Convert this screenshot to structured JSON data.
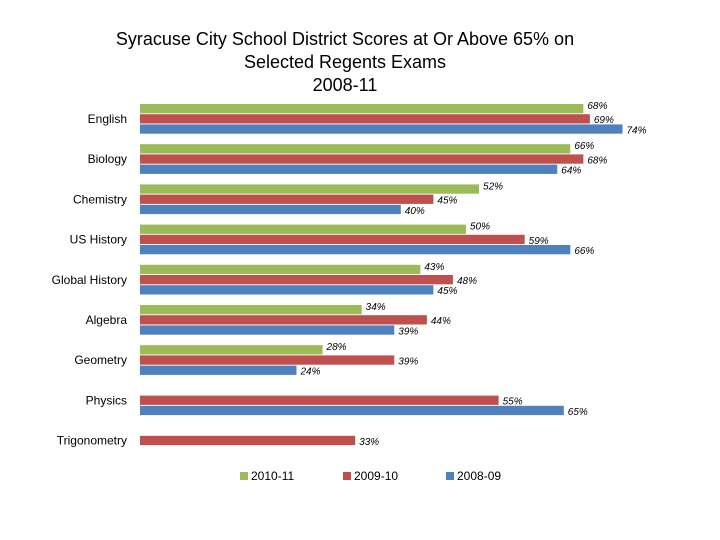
{
  "chart_data": {
    "type": "bar",
    "orientation": "horizontal",
    "title": [
      "Syracuse City School District Scores at Or Above 65% on",
      "Selected Regents Exams",
      "2008-11"
    ],
    "categories": [
      "English",
      "Biology",
      "Chemistry",
      "US History",
      "Global History",
      "Algebra",
      "Geometry",
      "Physics",
      "Trigonometry"
    ],
    "series": [
      {
        "name": "2010-11",
        "color": "#9bbb59",
        "values": [
          68,
          66,
          52,
          50,
          43,
          34,
          28,
          null,
          null
        ],
        "labels": [
          "68%",
          "66%",
          "52%",
          "50%",
          "43%",
          "34%",
          "28%",
          "",
          ""
        ]
      },
      {
        "name": "2009-10",
        "color": "#c0504d",
        "values": [
          69,
          68,
          45,
          59,
          48,
          44,
          39,
          55,
          33
        ],
        "labels": [
          "69%",
          "68%",
          "45%",
          "59%",
          "48%",
          "44%",
          "39%",
          "55%",
          "33%"
        ]
      },
      {
        "name": "2008-09",
        "color": "#4f81bd",
        "values": [
          74,
          64,
          40,
          66,
          45,
          39,
          24,
          65,
          null
        ],
        "labels": [
          "74%",
          "64%",
          "40%",
          "66%",
          "45%",
          "39%",
          "24%",
          "65%",
          ""
        ]
      }
    ],
    "xlim": [
      0,
      100
    ],
    "grid": false,
    "legend_position": "bottom"
  }
}
